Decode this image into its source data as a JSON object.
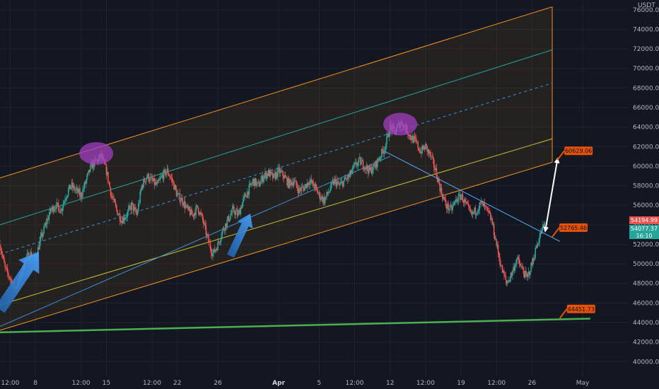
{
  "currency_label": "USDT",
  "colors": {
    "background": "#131722",
    "grid": "#1f2330",
    "candle_up": "#26a69a",
    "candle_down": "#ef5350",
    "channel_edge": "#f7931a",
    "channel_fill": "#f7931a",
    "mid_line": "#3b8fd9",
    "green_line": "#26a69a",
    "yellow_line": "#c8c431",
    "support_line": "#4caf50",
    "arrow_blue": "#2f7fd1",
    "ellipse": "#a23fc0",
    "callout": "#e65100",
    "last_price_tag": "#ef5350",
    "current_price_tag": "#26a69a"
  },
  "chart_data": {
    "type": "candlestick",
    "title": "",
    "ylabel": "",
    "ylim": [
      38500,
      77000
    ],
    "y_ticks": [
      40000,
      42000,
      44000,
      46000,
      48000,
      50000,
      52000,
      54000,
      56000,
      58000,
      60000,
      62000,
      64000,
      66000,
      68000,
      70000,
      72000,
      74000,
      76000
    ],
    "y_tick_labels": [
      "40000.00",
      "42000.00",
      "44000.00",
      "46000.00",
      "48000.00",
      "50000.00",
      "52000.00",
      "54000.00",
      "56000.00",
      "58000.00",
      "60000.00",
      "62000.00",
      "64000.00",
      "66000.00",
      "68000.00",
      "70000.00",
      "72000.00",
      "74000.00",
      "76000.00"
    ],
    "x_domain": [
      "2024-03-04T12:00",
      "2024-05-01T00:00"
    ],
    "x_ticks": [
      {
        "t": "2024-03-05T12:00",
        "label": "12:00",
        "bold": false
      },
      {
        "t": "2024-03-08T00:00",
        "label": "8",
        "bold": false
      },
      {
        "t": "2024-03-12T12:00",
        "label": "12:00",
        "bold": false
      },
      {
        "t": "2024-03-15T00:00",
        "label": "15",
        "bold": false
      },
      {
        "t": "2024-03-19T12:00",
        "label": "12:00",
        "bold": false
      },
      {
        "t": "2024-03-22T00:00",
        "label": "22",
        "bold": false
      },
      {
        "t": "2024-03-26T00:00",
        "label": "26",
        "bold": false
      },
      {
        "t": "2024-04-01T00:00",
        "label": "Apr",
        "bold": true
      },
      {
        "t": "2024-04-05T00:00",
        "label": "5",
        "bold": false
      },
      {
        "t": "2024-04-08T12:00",
        "label": "12:00",
        "bold": false
      },
      {
        "t": "2024-04-12T00:00",
        "label": "12",
        "bold": false
      },
      {
        "t": "2024-04-15T12:00",
        "label": "12:00",
        "bold": false
      },
      {
        "t": "2024-04-19T00:00",
        "label": "19",
        "bold": false
      },
      {
        "t": "2024-04-22T12:00",
        "label": "12:00",
        "bold": false
      },
      {
        "t": "2024-04-26T00:00",
        "label": "26",
        "bold": false
      },
      {
        "t": "2024-05-01T00:00",
        "label": "May",
        "bold": false
      }
    ],
    "price_path": [
      [
        "2024-03-04T12:00",
        52000
      ],
      [
        "2024-03-05T00:00",
        49500
      ],
      [
        "2024-03-05T12:00",
        48500
      ],
      [
        "2024-03-06T00:00",
        47500
      ],
      [
        "2024-03-06T12:00",
        48500
      ],
      [
        "2024-03-07T00:00",
        50500
      ],
      [
        "2024-03-07T12:00",
        51000
      ],
      [
        "2024-03-08T00:00",
        50500
      ],
      [
        "2024-03-08T12:00",
        52500
      ],
      [
        "2024-03-09T00:00",
        54000
      ],
      [
        "2024-03-09T12:00",
        55500
      ],
      [
        "2024-03-10T00:00",
        56000
      ],
      [
        "2024-03-10T12:00",
        55500
      ],
      [
        "2024-03-11T00:00",
        57000
      ],
      [
        "2024-03-11T12:00",
        58000
      ],
      [
        "2024-03-12T00:00",
        57500
      ],
      [
        "2024-03-12T12:00",
        57000
      ],
      [
        "2024-03-13T00:00",
        58500
      ],
      [
        "2024-03-13T12:00",
        60000
      ],
      [
        "2024-03-14T00:00",
        60500
      ],
      [
        "2024-03-14T12:00",
        61000
      ],
      [
        "2024-03-15T00:00",
        59500
      ],
      [
        "2024-03-15T12:00",
        57000
      ],
      [
        "2024-03-16T00:00",
        55500
      ],
      [
        "2024-03-16T12:00",
        54500
      ],
      [
        "2024-03-17T00:00",
        55000
      ],
      [
        "2024-03-17T12:00",
        56000
      ],
      [
        "2024-03-18T00:00",
        55000
      ],
      [
        "2024-03-18T12:00",
        58000
      ],
      [
        "2024-03-19T00:00",
        59000
      ],
      [
        "2024-03-19T12:00",
        58500
      ],
      [
        "2024-03-20T00:00",
        58000
      ],
      [
        "2024-03-20T12:00",
        59000
      ],
      [
        "2024-03-21T00:00",
        59500
      ],
      [
        "2024-03-21T12:00",
        58500
      ],
      [
        "2024-03-22T00:00",
        57000
      ],
      [
        "2024-03-22T12:00",
        56500
      ],
      [
        "2024-03-23T00:00",
        55500
      ],
      [
        "2024-03-23T12:00",
        55000
      ],
      [
        "2024-03-24T00:00",
        55800
      ],
      [
        "2024-03-24T12:00",
        54500
      ],
      [
        "2024-03-25T00:00",
        52500
      ],
      [
        "2024-03-25T12:00",
        51000
      ],
      [
        "2024-03-26T00:00",
        52000
      ],
      [
        "2024-03-26T12:00",
        53500
      ],
      [
        "2024-03-27T00:00",
        54500
      ],
      [
        "2024-03-27T12:00",
        55500
      ],
      [
        "2024-03-28T00:00",
        55000
      ],
      [
        "2024-03-28T12:00",
        56500
      ],
      [
        "2024-03-29T00:00",
        57500
      ],
      [
        "2024-03-29T12:00",
        58500
      ],
      [
        "2024-03-30T00:00",
        58000
      ],
      [
        "2024-03-30T12:00",
        59000
      ],
      [
        "2024-03-31T00:00",
        59300
      ],
      [
        "2024-03-31T12:00",
        58800
      ],
      [
        "2024-04-01T00:00",
        59500
      ],
      [
        "2024-04-01T12:00",
        59000
      ],
      [
        "2024-04-02T00:00",
        58200
      ],
      [
        "2024-04-02T12:00",
        58500
      ],
      [
        "2024-04-03T00:00",
        57500
      ],
      [
        "2024-04-03T12:00",
        57800
      ],
      [
        "2024-04-04T00:00",
        58500
      ],
      [
        "2024-04-04T12:00",
        58000
      ],
      [
        "2024-04-05T00:00",
        57000
      ],
      [
        "2024-04-05T12:00",
        56500
      ],
      [
        "2024-04-06T00:00",
        57500
      ],
      [
        "2024-04-06T12:00",
        58500
      ],
      [
        "2024-04-07T00:00",
        58000
      ],
      [
        "2024-04-07T12:00",
        58500
      ],
      [
        "2024-04-08T00:00",
        59000
      ],
      [
        "2024-04-08T12:00",
        60000
      ],
      [
        "2024-04-09T00:00",
        60500
      ],
      [
        "2024-04-09T12:00",
        60000
      ],
      [
        "2024-04-10T00:00",
        59500
      ],
      [
        "2024-04-10T12:00",
        60000
      ],
      [
        "2024-04-11T00:00",
        61000
      ],
      [
        "2024-04-11T12:00",
        62000
      ],
      [
        "2024-04-12T00:00",
        64000
      ],
      [
        "2024-04-12T12:00",
        63500
      ],
      [
        "2024-04-13T00:00",
        64500
      ],
      [
        "2024-04-13T12:00",
        64000
      ],
      [
        "2024-04-14T00:00",
        63000
      ],
      [
        "2024-04-14T12:00",
        62500
      ],
      [
        "2024-04-15T00:00",
        61500
      ],
      [
        "2024-04-15T12:00",
        62000
      ],
      [
        "2024-04-16T00:00",
        61000
      ],
      [
        "2024-04-16T12:00",
        59500
      ],
      [
        "2024-04-17T00:00",
        57500
      ],
      [
        "2024-04-17T12:00",
        56000
      ],
      [
        "2024-04-18T00:00",
        55500
      ],
      [
        "2024-04-18T12:00",
        56500
      ],
      [
        "2024-04-19T00:00",
        57000
      ],
      [
        "2024-04-19T12:00",
        56000
      ],
      [
        "2024-04-20T00:00",
        55000
      ],
      [
        "2024-04-20T12:00",
        55500
      ],
      [
        "2024-04-21T00:00",
        56200
      ],
      [
        "2024-04-21T12:00",
        55500
      ],
      [
        "2024-04-22T00:00",
        54500
      ],
      [
        "2024-04-22T12:00",
        52000
      ],
      [
        "2024-04-23T00:00",
        49500
      ],
      [
        "2024-04-23T12:00",
        48000
      ],
      [
        "2024-04-24T00:00",
        49000
      ],
      [
        "2024-04-24T12:00",
        50500
      ],
      [
        "2024-04-25T00:00",
        49500
      ],
      [
        "2024-04-25T12:00",
        48500
      ],
      [
        "2024-04-26T00:00",
        50000
      ],
      [
        "2024-04-26T12:00",
        52000
      ],
      [
        "2024-04-27T00:00",
        53500
      ],
      [
        "2024-04-27T06:00",
        54077
      ]
    ],
    "drawings": {
      "channel_upper": {
        "from": [
          "2024-03-04T12:00",
          58800
        ],
        "to": [
          "2024-04-28T00:00",
          76300
        ]
      },
      "channel_green": {
        "from": [
          "2024-03-04T12:00",
          54000
        ],
        "to": [
          "2024-04-28T00:00",
          71900
        ]
      },
      "channel_mid_dashed": {
        "from": [
          "2024-03-04T12:00",
          51000
        ],
        "to": [
          "2024-04-28T00:00",
          68500
        ]
      },
      "channel_yellow": {
        "from": [
          "2024-03-04T12:00",
          45800
        ],
        "to": [
          "2024-04-28T00:00",
          62800
        ]
      },
      "channel_lower": {
        "from": [
          "2024-03-04T12:00",
          43200
        ],
        "to": [
          "2024-04-28T00:00",
          60400
        ]
      },
      "blue_trendline": {
        "from": [
          "2024-03-04T12:00",
          43600
        ],
        "to": [
          "2024-04-12T00:00",
          61000
        ]
      },
      "descending_line": {
        "from": [
          "2024-04-11T12:00",
          61500
        ],
        "to": [
          "2024-04-28T18:00",
          52300
        ]
      },
      "support_line": {
        "from": [
          "2024-03-04T12:00",
          43000
        ],
        "to": [
          "2024-05-01T18:00",
          44400
        ]
      },
      "projection_arrow": {
        "from": [
          "2024-04-27T08:00",
          53500
        ],
        "to": [
          "2024-04-28T12:00",
          60600
        ]
      }
    },
    "ellipses": [
      {
        "t": "2024-03-14T00:00",
        "y": 61300
      },
      {
        "t": "2024-04-13T00:00",
        "y": 64300
      }
    ],
    "annotations": [
      {
        "label": "60629.06",
        "t": "2024-04-28T12:00",
        "y": 60629.06
      },
      {
        "label": "52765.46",
        "t": "2024-04-28T00:00",
        "y": 52765.46
      },
      {
        "label": "44451.73",
        "t": "2024-04-28T18:00",
        "y": 44451.73
      }
    ],
    "last_price_label": "54194.99",
    "current_price_label": "54077.37",
    "countdown_label": "16:10"
  }
}
